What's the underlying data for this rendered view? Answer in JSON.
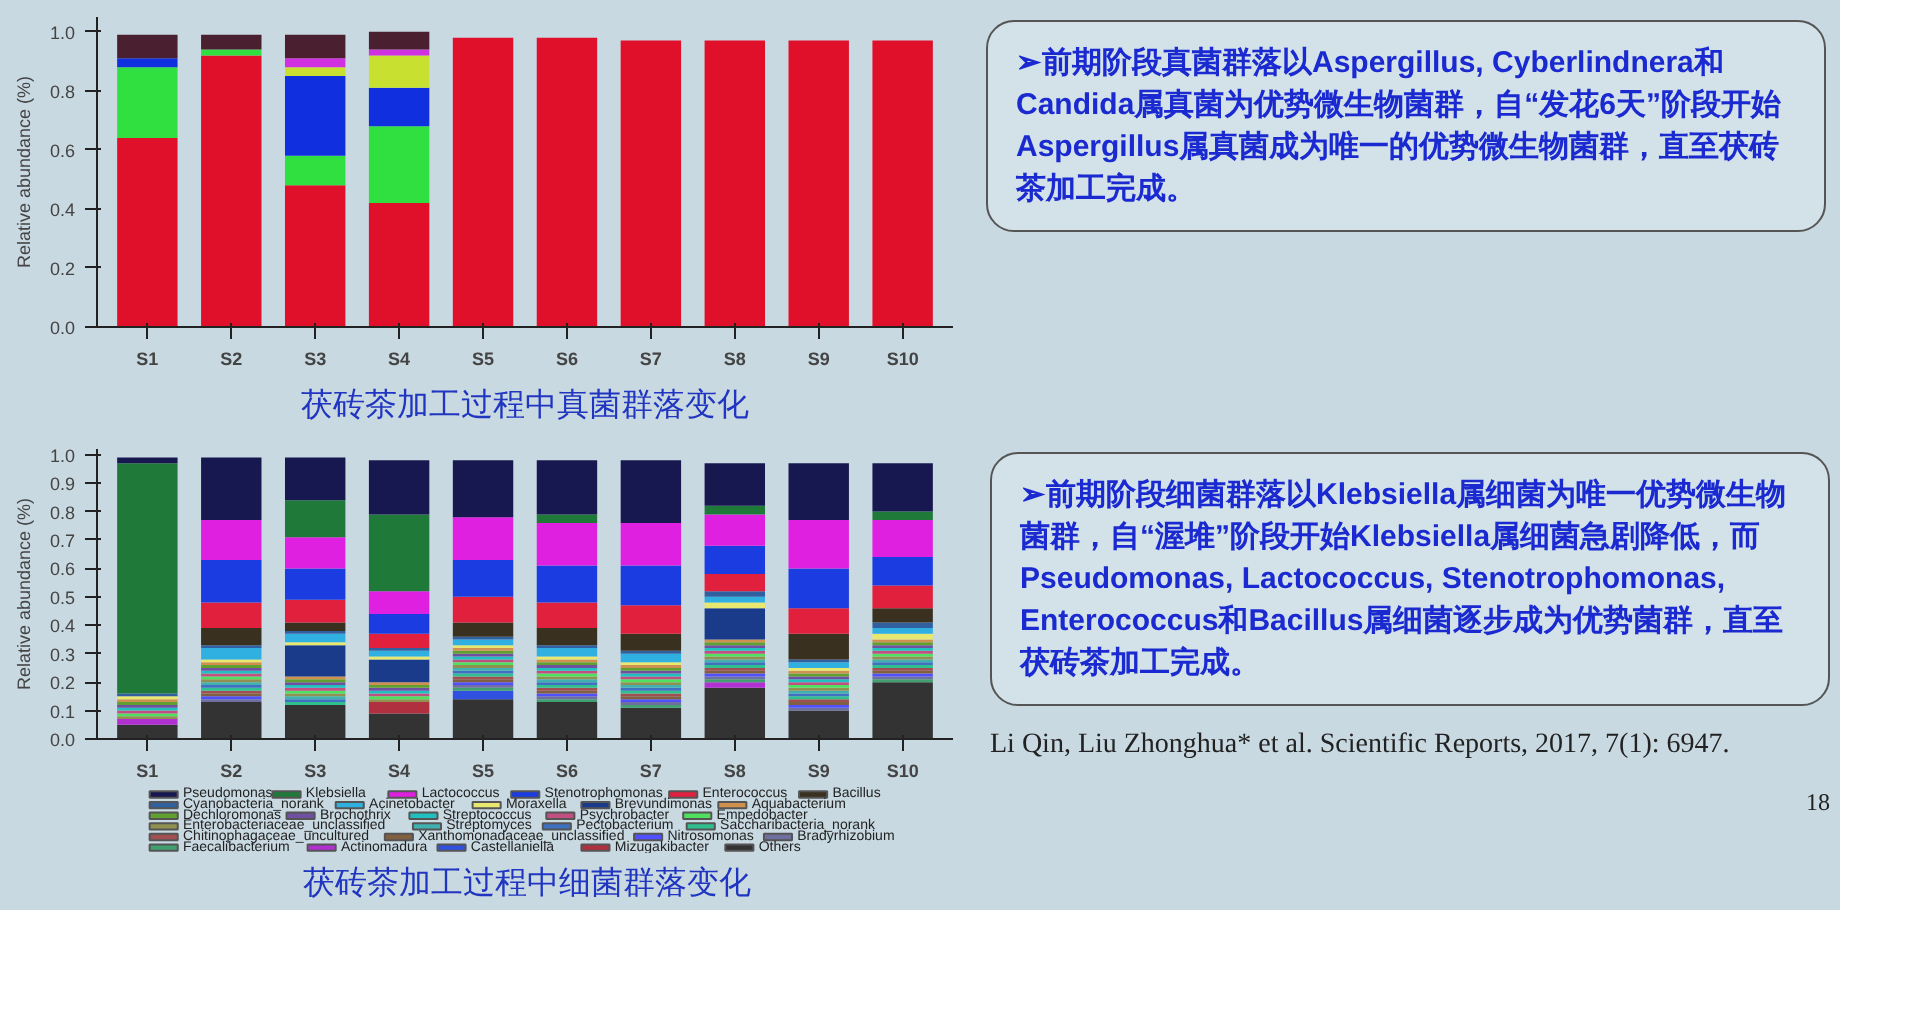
{
  "chart_data": [
    {
      "type": "bar",
      "stacked": true,
      "title": "茯砖茶加工过程中真菌群落变化",
      "ylabel": "Relative abundance (%)",
      "categories": [
        "S1",
        "S2",
        "S3",
        "S4",
        "S5",
        "S6",
        "S7",
        "S8",
        "S9",
        "S10"
      ],
      "ylim": [
        0,
        1.05
      ],
      "yticks": [
        {
          "value": 0,
          "label": "0.0"
        },
        {
          "value": 0.2,
          "label": "0.2"
        },
        {
          "value": 0.4,
          "label": "0.4"
        },
        {
          "value": 0.6,
          "label": "0.6"
        },
        {
          "value": 0.8,
          "label": "0.8"
        },
        {
          "value": 1,
          "label": "1.0"
        }
      ],
      "series": [
        {
          "color": "#e0102a",
          "values": [
            0.64,
            0.92,
            0.48,
            0.42,
            0.98,
            0.98,
            0.97,
            0.97,
            0.97,
            0.97
          ]
        },
        {
          "color": "#30e040",
          "values": [
            0.24,
            0.02,
            0.1,
            0.26,
            0,
            0,
            0,
            0,
            0,
            0
          ]
        },
        {
          "color": "#1030e0",
          "values": [
            0.03,
            0,
            0.27,
            0.13,
            0,
            0,
            0,
            0,
            0,
            0
          ]
        },
        {
          "color": "#c8e030",
          "values": [
            0,
            0,
            0.03,
            0.11,
            0,
            0,
            0,
            0,
            0,
            0
          ]
        },
        {
          "color": "#d030e0",
          "values": [
            0,
            0,
            0.03,
            0.02,
            0,
            0,
            0,
            0,
            0,
            0
          ]
        },
        {
          "color": "#4a2030",
          "values": [
            0.08,
            0.05,
            0.08,
            0.06,
            0,
            0,
            0,
            0,
            0,
            0
          ]
        }
      ],
      "annotations": [
        "➢前期阶段真菌群落以Aspergillus, Cyberlindnera和Candida属真菌为优势微生物菌群，自“发花6天”阶段开始Aspergillus属真菌成为唯一的优势微生物菌群，直至茯砖茶加工完成。"
      ]
    },
    {
      "type": "bar",
      "stacked": true,
      "title": "茯砖茶加工过程中细菌群落变化",
      "ylabel": "Relative abundance (%)",
      "legend": "bottom",
      "categories": [
        "S1",
        "S2",
        "S3",
        "S4",
        "S5",
        "S6",
        "S7",
        "S8",
        "S9",
        "S10"
      ],
      "ylim": [
        0,
        1.02
      ],
      "yticks": [
        {
          "value": 0,
          "label": "0.0"
        },
        {
          "value": 0.1,
          "label": "0.1"
        },
        {
          "value": 0.2,
          "label": "0.2"
        },
        {
          "value": 0.3,
          "label": "0.3"
        },
        {
          "value": 0.4,
          "label": "0.4"
        },
        {
          "value": 0.5,
          "label": "0.5"
        },
        {
          "value": 0.6,
          "label": "0.6"
        },
        {
          "value": 0.7,
          "label": "0.7"
        },
        {
          "value": 0.8,
          "label": "0.8"
        },
        {
          "value": 0.9,
          "label": "0.9"
        },
        {
          "value": 1,
          "label": "1.0"
        }
      ],
      "series": [
        {
          "name": "Others",
          "color": "#333333",
          "values": [
            0.05,
            0.13,
            0.12,
            0.09,
            0.14,
            0.13,
            0.11,
            0.18,
            0.1,
            0.2
          ]
        },
        {
          "name": "Mizugakibacter",
          "color": "#b03040",
          "values": [
            0,
            0,
            0,
            0.04,
            0,
            0,
            0,
            0,
            0,
            0
          ]
        },
        {
          "name": "Castellaniella",
          "color": "#3050e0",
          "values": [
            0,
            0,
            0,
            0,
            0.03,
            0,
            0,
            0,
            0,
            0
          ]
        },
        {
          "name": "Actinomadura",
          "color": "#b030d0",
          "values": [
            0.02,
            0,
            0,
            0,
            0,
            0,
            0,
            0.02,
            0,
            0
          ]
        },
        {
          "name": "Faecalibacterium",
          "color": "#40a070",
          "values": [
            0,
            0,
            0,
            0,
            0.01,
            0.01,
            0.01,
            0.01,
            0,
            0.01
          ]
        },
        {
          "name": "Bradyrhizobium",
          "color": "#7070a0",
          "values": [
            0,
            0.01,
            0,
            0,
            0.01,
            0.01,
            0.01,
            0.01,
            0.01,
            0.01
          ]
        },
        {
          "name": "Nitrosomonas",
          "color": "#5050ff",
          "values": [
            0,
            0.01,
            0,
            0,
            0.01,
            0.01,
            0.01,
            0.01,
            0.01,
            0.01
          ]
        },
        {
          "name": "Xanthomonadaceae_unclassified",
          "color": "#806040",
          "values": [
            0,
            0.01,
            0,
            0,
            0.01,
            0.01,
            0.01,
            0.01,
            0.01,
            0.01
          ]
        },
        {
          "name": "Chitinophagaceae_uncultured",
          "color": "#a05050",
          "values": [
            0,
            0.01,
            0,
            0,
            0.01,
            0.01,
            0.01,
            0.01,
            0.01,
            0.01
          ]
        },
        {
          "name": "Saccharibacteria_norank",
          "color": "#30c090",
          "values": [
            0,
            0.01,
            0.01,
            0,
            0.01,
            0.01,
            0.01,
            0.01,
            0.01,
            0.01
          ]
        },
        {
          "name": "Pectobacterium",
          "color": "#4070c0",
          "values": [
            0,
            0.01,
            0.01,
            0,
            0.01,
            0.01,
            0.01,
            0.01,
            0.01,
            0.01
          ]
        },
        {
          "name": "Streptomyces",
          "color": "#40b0b0",
          "values": [
            0,
            0.01,
            0.01,
            0,
            0.01,
            0.01,
            0.01,
            0.01,
            0.01,
            0.01
          ]
        },
        {
          "name": "Enterobacteriaceae_unclassified",
          "color": "#909050",
          "values": [
            0.01,
            0.01,
            0.01,
            0.01,
            0.01,
            0.01,
            0.01,
            0.01,
            0.01,
            0.01
          ]
        },
        {
          "name": "Empedobacter",
          "color": "#50e060",
          "values": [
            0.01,
            0.01,
            0.01,
            0.01,
            0.01,
            0.01,
            0.01,
            0.01,
            0.01,
            0.01
          ]
        },
        {
          "name": "Psychrobacter",
          "color": "#c05080",
          "values": [
            0.01,
            0.01,
            0.01,
            0.01,
            0.01,
            0.01,
            0.01,
            0.01,
            0.01,
            0.01
          ]
        },
        {
          "name": "Streptococcus",
          "color": "#20c0c0",
          "values": [
            0.01,
            0.01,
            0.01,
            0.01,
            0.01,
            0.01,
            0.01,
            0.01,
            0.01,
            0.01
          ]
        },
        {
          "name": "Brochothrix",
          "color": "#7050a0",
          "values": [
            0.01,
            0.01,
            0.01,
            0.01,
            0.01,
            0.01,
            0.01,
            0.01,
            0.01,
            0.01
          ]
        },
        {
          "name": "Dechloromonas",
          "color": "#60a030",
          "values": [
            0.01,
            0.01,
            0.01,
            0.01,
            0.01,
            0.01,
            0.01,
            0.01,
            0.01,
            0.01
          ]
        },
        {
          "name": "Aquabacterium",
          "color": "#d09050",
          "values": [
            0.01,
            0.01,
            0.01,
            0.01,
            0.01,
            0.01,
            0.01,
            0.01,
            0.01,
            0.01
          ]
        },
        {
          "name": "Brevundimonas",
          "color": "#1a3a8a",
          "values": [
            0,
            0,
            0.11,
            0.08,
            0,
            0,
            0,
            0.11,
            0,
            0
          ]
        },
        {
          "name": "Moraxella",
          "color": "#e8e870",
          "values": [
            0.01,
            0.01,
            0.01,
            0.01,
            0.01,
            0.01,
            0.01,
            0.02,
            0.01,
            0.02
          ]
        },
        {
          "name": "Acinetobacter",
          "color": "#30b0e0",
          "values": [
            0,
            0.04,
            0.03,
            0.02,
            0.02,
            0.03,
            0.03,
            0.02,
            0.02,
            0.02
          ]
        },
        {
          "name": "Cyanobacteria_norank",
          "color": "#3060a0",
          "values": [
            0.01,
            0.01,
            0.01,
            0.01,
            0.01,
            0.01,
            0.01,
            0.02,
            0.01,
            0.02
          ]
        },
        {
          "name": "Bacillus",
          "color": "#3a3020",
          "values": [
            0,
            0.06,
            0.03,
            0,
            0.05,
            0.06,
            0.06,
            0,
            0.09,
            0.05
          ]
        },
        {
          "name": "Enterococcus",
          "color": "#e0203c",
          "values": [
            0,
            0.09,
            0.08,
            0.05,
            0.09,
            0.09,
            0.1,
            0.06,
            0.09,
            0.08
          ]
        },
        {
          "name": "Stenotrophomonas",
          "color": "#1a3ce0",
          "values": [
            0,
            0.15,
            0.11,
            0.07,
            0.13,
            0.13,
            0.14,
            0.1,
            0.14,
            0.1
          ]
        },
        {
          "name": "Lactococcus",
          "color": "#e020e0",
          "values": [
            0,
            0.14,
            0.11,
            0.08,
            0.15,
            0.15,
            0.15,
            0.11,
            0.17,
            0.13
          ]
        },
        {
          "name": "Klebsiella",
          "color": "#1f7a3a",
          "values": [
            0.81,
            0,
            0.13,
            0.27,
            0,
            0.03,
            0,
            0.03,
            0,
            0.03
          ]
        },
        {
          "name": "Pseudomonas",
          "color": "#181850",
          "values": [
            0.02,
            0.22,
            0.15,
            0.19,
            0.2,
            0.19,
            0.22,
            0.15,
            0.2,
            0.17
          ]
        }
      ],
      "annotations": [
        "➢前期阶段细菌群落以Klebsiella属细菌为唯一优势微生物菌群，自“渥堆”阶段开始Klebsiella属细菌急剧降低，而Pseudomonas, Lactococcus, Stenotrophomonas, Enterococcus和Bacillus属细菌逐步成为优势菌群，直至茯砖茶加工完成。",
        "Li Qin, Liu Zhonghua* et al. Scientific Reports, 2017, 7(1): 6947.",
        "18"
      ]
    }
  ]
}
